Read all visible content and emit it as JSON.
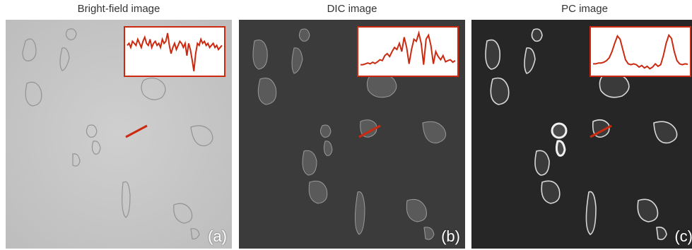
{
  "colors": {
    "accent": "#cc2a10",
    "bf_bg": "#c8c8c8",
    "dic_bg": "#3b3b3b",
    "pc_bg": "#262626"
  },
  "panels": [
    {
      "title": "Bright-field image",
      "label": "(a)",
      "profile": [
        0.35,
        0.3,
        0.4,
        0.25,
        0.3,
        0.35,
        0.2,
        0.3,
        0.4,
        0.25,
        0.15,
        0.3,
        0.35,
        0.2,
        0.4,
        0.3,
        0.25,
        0.35,
        0.3,
        0.4,
        0.2,
        0.3,
        0.25,
        0.05,
        0.35,
        0.55,
        0.4,
        0.3,
        0.45,
        0.35,
        0.25,
        0.3,
        0.4,
        0.3,
        0.6,
        0.3,
        0.45,
        0.7,
        0.98,
        0.55,
        0.3,
        0.35,
        0.2,
        0.3,
        0.25,
        0.35,
        0.3,
        0.4,
        0.35,
        0.3,
        0.4,
        0.35,
        0.45,
        0.4,
        0.35
      ]
    },
    {
      "title": "DIC image",
      "label": "(b)",
      "profile": [
        0.82,
        0.82,
        0.8,
        0.78,
        0.8,
        0.76,
        0.79,
        0.75,
        0.7,
        0.72,
        0.6,
        0.55,
        0.62,
        0.5,
        0.4,
        0.45,
        0.3,
        0.5,
        0.15,
        0.4,
        0.8,
        0.45,
        0.2,
        0.25,
        0.05,
        0.3,
        0.82,
        0.2,
        0.1,
        0.35,
        0.8,
        0.5,
        0.62,
        0.7,
        0.6,
        0.75,
        0.72,
        0.7,
        0.76,
        0.72
      ]
    },
    {
      "title": "PC image",
      "label": "(c)",
      "profile": [
        0.8,
        0.8,
        0.78,
        0.78,
        0.76,
        0.72,
        0.65,
        0.5,
        0.3,
        0.12,
        0.2,
        0.45,
        0.7,
        0.8,
        0.82,
        0.8,
        0.82,
        0.88,
        0.84,
        0.9,
        0.86,
        0.92,
        0.88,
        0.8,
        0.86,
        0.82,
        0.6,
        0.3,
        0.1,
        0.18,
        0.5,
        0.72,
        0.8,
        0.82,
        0.8,
        0.81
      ]
    }
  ]
}
